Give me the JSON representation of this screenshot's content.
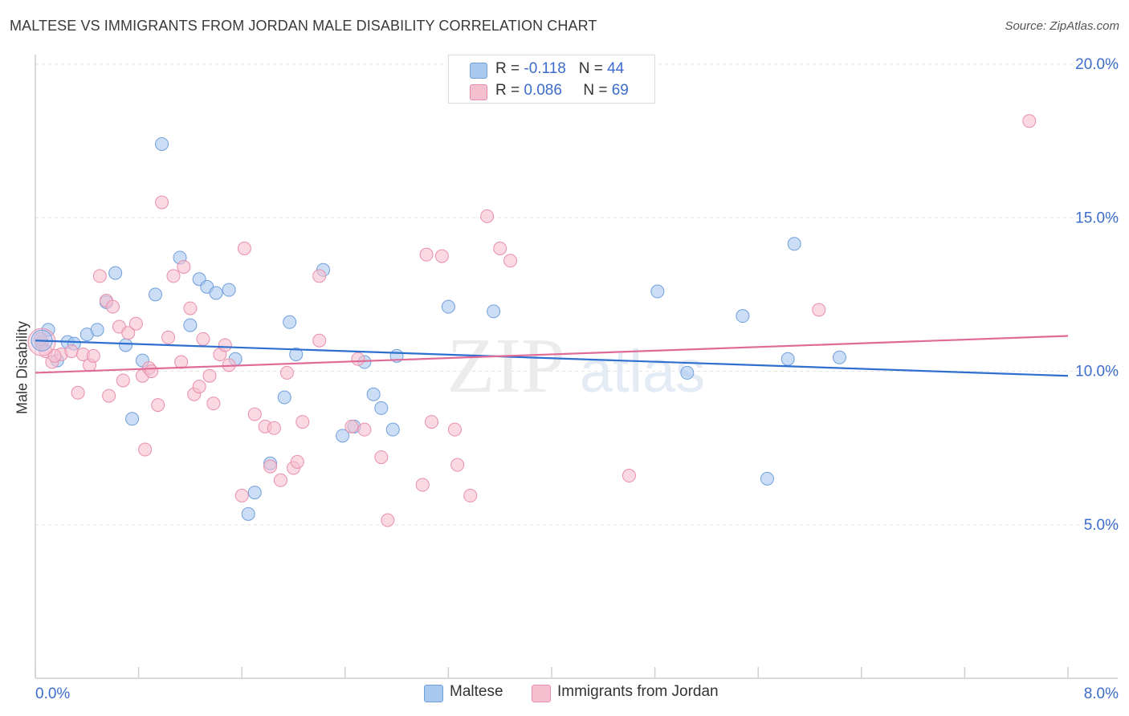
{
  "title": "MALTESE VS IMMIGRANTS FROM JORDAN MALE DISABILITY CORRELATION CHART",
  "source": "Source: ZipAtlas.com",
  "stats": {
    "row1": {
      "r_label": "R = ",
      "r_value": "-0.118",
      "n_label": "N = ",
      "n_value": "44"
    },
    "row2": {
      "r_label": "R = ",
      "r_value": "0.086",
      "n_label": "N = ",
      "n_value": "69"
    }
  },
  "legend": {
    "series1": "Maltese",
    "series2": "Immigrants from Jordan"
  },
  "colors": {
    "blue_fill": "#a9c8f0",
    "blue_stroke": "#6f9fdc",
    "blue_line": "#2f6fcf",
    "pink_fill": "#f6bfd0",
    "pink_stroke": "#e88fac",
    "pink_line": "#e06b98",
    "tick_label": "#3c6ccc",
    "grid": "#e3e3e3"
  },
  "chart_data": {
    "type": "scatter",
    "xlabel": "",
    "ylabel": "Male Disability",
    "xlim": [
      0,
      8
    ],
    "ylim": [
      0,
      20
    ],
    "x_tick_labels": [
      "0.0%",
      "8.0%"
    ],
    "y_ticks": [
      5,
      10,
      15,
      20
    ],
    "y_tick_labels": [
      "5.0%",
      "10.0%",
      "15.0%",
      "20.0%"
    ],
    "grid": "horizontal dashed",
    "legend_position": "bottom-center",
    "series": [
      {
        "name": "Maltese",
        "color": "#a9c8f0",
        "trend": {
          "x": [
            0,
            8
          ],
          "y": [
            11.0,
            9.85
          ]
        },
        "points": [
          [
            0.05,
            10.95
          ],
          [
            0.1,
            11.35
          ],
          [
            0.17,
            10.35
          ],
          [
            0.25,
            10.95
          ],
          [
            0.3,
            10.9
          ],
          [
            0.4,
            11.2
          ],
          [
            0.48,
            11.35
          ],
          [
            0.55,
            12.25
          ],
          [
            0.62,
            13.2
          ],
          [
            0.7,
            10.85
          ],
          [
            0.75,
            8.45
          ],
          [
            0.83,
            10.35
          ],
          [
            0.93,
            12.5
          ],
          [
            0.98,
            17.4
          ],
          [
            1.12,
            13.7
          ],
          [
            1.2,
            11.5
          ],
          [
            1.27,
            13.0
          ],
          [
            1.33,
            12.75
          ],
          [
            1.4,
            12.55
          ],
          [
            1.5,
            12.65
          ],
          [
            1.55,
            10.4
          ],
          [
            1.65,
            5.35
          ],
          [
            1.7,
            6.05
          ],
          [
            1.82,
            7.0
          ],
          [
            1.93,
            9.15
          ],
          [
            1.97,
            11.6
          ],
          [
            2.02,
            10.55
          ],
          [
            2.23,
            13.3
          ],
          [
            2.38,
            7.9
          ],
          [
            2.47,
            8.2
          ],
          [
            2.55,
            10.3
          ],
          [
            2.62,
            9.25
          ],
          [
            2.68,
            8.8
          ],
          [
            2.77,
            8.1
          ],
          [
            2.8,
            10.5
          ],
          [
            3.2,
            12.1
          ],
          [
            3.55,
            11.95
          ],
          [
            4.82,
            12.6
          ],
          [
            5.05,
            9.95
          ],
          [
            5.48,
            11.8
          ],
          [
            5.67,
            6.5
          ],
          [
            5.83,
            10.4
          ],
          [
            5.88,
            14.15
          ],
          [
            6.23,
            10.45
          ]
        ]
      },
      {
        "name": "Immigrants from Jordan",
        "color": "#f6bfd0",
        "trend": {
          "x": [
            0,
            8
          ],
          "y": [
            9.95,
            11.15
          ]
        },
        "points": [
          [
            0.05,
            10.9
          ],
          [
            0.08,
            10.65
          ],
          [
            0.13,
            10.3
          ],
          [
            0.2,
            10.55
          ],
          [
            0.28,
            10.65
          ],
          [
            0.33,
            9.3
          ],
          [
            0.37,
            10.55
          ],
          [
            0.42,
            10.2
          ],
          [
            0.45,
            10.5
          ],
          [
            0.5,
            13.1
          ],
          [
            0.55,
            12.3
          ],
          [
            0.57,
            9.2
          ],
          [
            0.6,
            12.1
          ],
          [
            0.65,
            11.45
          ],
          [
            0.68,
            9.7
          ],
          [
            0.72,
            11.25
          ],
          [
            0.78,
            11.55
          ],
          [
            0.83,
            9.85
          ],
          [
            0.85,
            7.45
          ],
          [
            0.88,
            10.1
          ],
          [
            0.9,
            10.0
          ],
          [
            0.95,
            8.9
          ],
          [
            0.98,
            15.5
          ],
          [
            1.03,
            11.1
          ],
          [
            1.07,
            13.1
          ],
          [
            1.13,
            10.3
          ],
          [
            1.15,
            13.4
          ],
          [
            1.2,
            12.05
          ],
          [
            1.23,
            9.25
          ],
          [
            1.27,
            9.5
          ],
          [
            1.3,
            11.05
          ],
          [
            1.35,
            9.85
          ],
          [
            1.38,
            8.95
          ],
          [
            1.43,
            10.55
          ],
          [
            1.47,
            10.85
          ],
          [
            1.5,
            10.2
          ],
          [
            1.6,
            5.95
          ],
          [
            1.62,
            14.0
          ],
          [
            1.7,
            8.6
          ],
          [
            1.78,
            8.2
          ],
          [
            1.82,
            6.9
          ],
          [
            1.85,
            8.15
          ],
          [
            1.9,
            6.45
          ],
          [
            1.95,
            9.95
          ],
          [
            2.0,
            6.85
          ],
          [
            2.03,
            7.05
          ],
          [
            2.07,
            8.35
          ],
          [
            2.2,
            13.1
          ],
          [
            2.45,
            8.2
          ],
          [
            2.5,
            10.4
          ],
          [
            2.55,
            8.1
          ],
          [
            2.68,
            7.2
          ],
          [
            2.73,
            5.15
          ],
          [
            3.0,
            6.3
          ],
          [
            3.03,
            13.8
          ],
          [
            3.07,
            8.35
          ],
          [
            3.15,
            13.75
          ],
          [
            3.25,
            8.1
          ],
          [
            3.27,
            6.95
          ],
          [
            3.37,
            5.95
          ],
          [
            3.5,
            15.05
          ],
          [
            3.6,
            14.0
          ],
          [
            3.68,
            13.6
          ],
          [
            4.6,
            6.6
          ],
          [
            6.07,
            12.0
          ],
          [
            7.7,
            18.15
          ],
          [
            0.04,
            11.05
          ],
          [
            0.15,
            10.5
          ],
          [
            2.2,
            11.0
          ]
        ]
      }
    ]
  }
}
